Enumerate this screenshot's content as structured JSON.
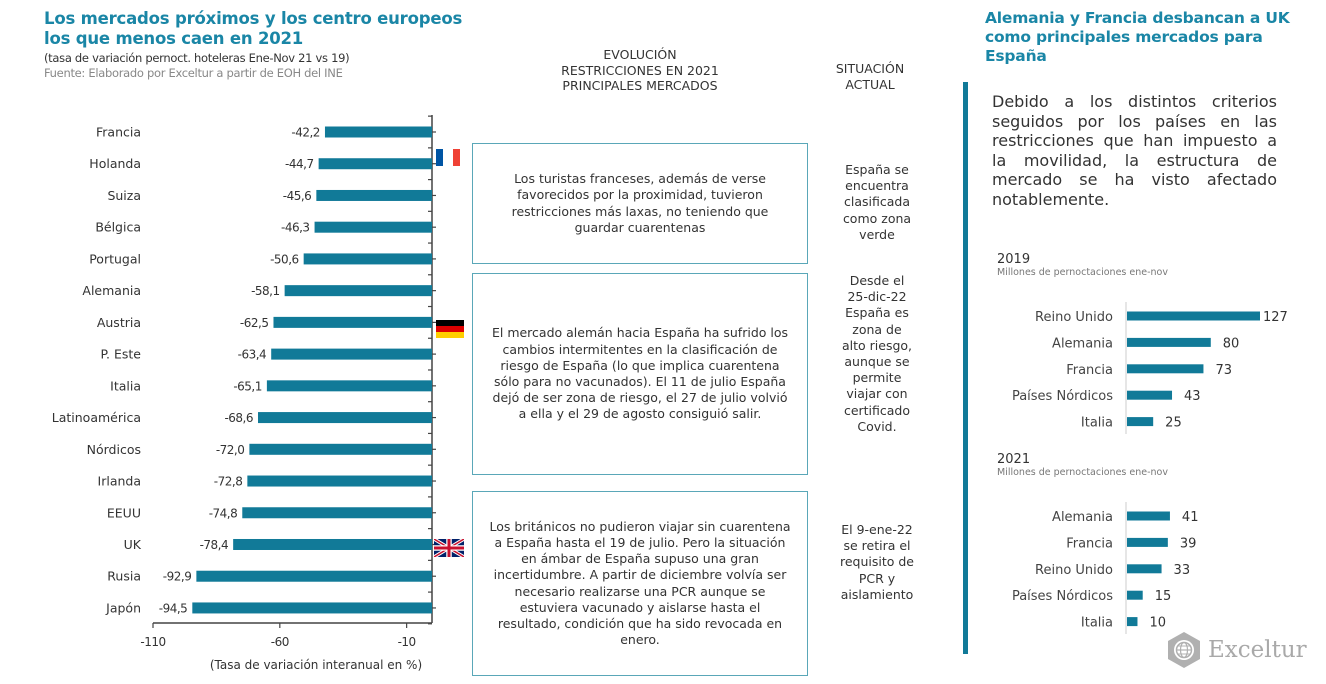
{
  "left": {
    "title": "Los mercados próximos y los centro europeos los que menos caen en 2021",
    "subtitle": "(tasa de variación pernoct. hoteleras Ene-Nov 21 vs 19)",
    "source": "Fuente:  Elaborado por Exceltur a partir de EOH del INE"
  },
  "columns": {
    "evolution_header": [
      "EVOLUCIÓN",
      "RESTRICCIONES EN 2021",
      "PRINCIPALES MERCADOS"
    ],
    "situation_header": [
      "SITUACIÓN",
      "ACTUAL"
    ]
  },
  "flags": {
    "fr_icon": "flag-france-icon",
    "de_icon": "flag-germany-icon",
    "uk_icon": "flag-uk-icon",
    "colors": {
      "fr_blue": "#0055a4",
      "fr_red": "#ef4135",
      "de_black": "#000000",
      "de_red": "#dd0000",
      "de_gold": "#ffce00",
      "uk_blue": "#012169",
      "uk_red": "#c8102e"
    }
  },
  "boxes": {
    "france": "Los turistas franceses, además de verse favorecidos por la proximidad, tuvieron restricciones más laxas, no teniendo que guardar cuarentenas",
    "germany": "El mercado alemán hacia España ha sufrido los cambios intermitentes en la clasificación de riesgo de España (lo que implica cuarentena sólo para no vacunados). El 11 de julio España dejó de ser zona de riesgo, el 27 de julio volvió a ella y el 29 de agosto consiguió salir.",
    "uk": "Los británicos no pudieron viajar sin cuarentena a España hasta el 19 de julio. Pero la situación en ámbar de España supuso una gran incertidumbre. A partir de diciembre volvía ser necesario realizarse una PCR aunque se estuviera vacunado y aislarse hasta el resultado, condición que ha sido revocada en enero."
  },
  "situation": {
    "france": [
      "España se",
      "encuentra",
      "clasificada",
      "como zona",
      "verde"
    ],
    "germany": [
      "Desde el",
      "25-dic-22",
      "España es",
      "zona de",
      "alto riesgo,",
      "aunque se",
      "permite",
      "viajar con",
      "certificado",
      "Covid."
    ],
    "uk": [
      "El 9-ene-22",
      "se retira el",
      "requisito de",
      "PCR y",
      "aislamiento"
    ]
  },
  "right": {
    "title": "Alemania y Francia desbancan a UK como principales mercados para España",
    "text": "Debido a los distintos criterios seguidos por los países en las restricciones que han impuesto a la movilidad, la estructura de mercado se ha visto afectado notablemente."
  },
  "logo": {
    "icon": "exceltur-globe-hexagon-icon",
    "text": "Exceltur"
  },
  "colors": {
    "accent": "#1a86a6",
    "bar": "#117a98",
    "box_border": "#5aa7b8"
  },
  "chart_data": [
    {
      "type": "bar",
      "orientation": "horizontal",
      "title": "Los mercados próximos y los centro europeos los que menos caen en 2021",
      "subtitle": "(tasa de variación pernoct. hoteleras Ene-Nov 21 vs 19)",
      "xlabel": "(Tasa de variación interanual en %)",
      "ylabel": "",
      "categories": [
        "Francia",
        "Holanda",
        "Suiza",
        "Bélgica",
        "Portugal",
        "Alemania",
        "Austria",
        "P. Este",
        "Italia",
        "Latinoamérica",
        "Nórdicos",
        "Irlanda",
        "EEUU",
        "UK",
        "Rusia",
        "Japón"
      ],
      "values": [
        -42.2,
        -44.7,
        -45.6,
        -46.3,
        -50.6,
        -58.1,
        -62.5,
        -63.4,
        -65.1,
        -68.6,
        -72.0,
        -72.8,
        -74.8,
        -78.4,
        -92.9,
        -94.5
      ],
      "value_labels": [
        "-42,2",
        "-44,7",
        "-45,6",
        "-46,3",
        "-50,6",
        "-58,1",
        "-62,5",
        "-63,4",
        "-65,1",
        "-68,6",
        "-72,0",
        "-72,8",
        "-74,8",
        "-78,4",
        "-92,9",
        "-94,5"
      ],
      "xlim": [
        -110,
        0
      ],
      "xticks": [
        -110,
        -60,
        -10
      ],
      "xtick_labels": [
        "-110",
        "-60",
        "-10"
      ],
      "grid": false,
      "legend": "none"
    },
    {
      "type": "bar",
      "orientation": "horizontal",
      "title": "2019",
      "subtitle": "Millones de pernoctaciones ene-nov",
      "categories": [
        "Reino Unido",
        "Alemania",
        "Francia",
        "Países Nórdicos",
        "Italia"
      ],
      "values": [
        127,
        80,
        73,
        43,
        25
      ],
      "xlim": [
        0,
        130
      ],
      "grid": false,
      "legend": "none"
    },
    {
      "type": "bar",
      "orientation": "horizontal",
      "title": "2021",
      "subtitle": "Millones de pernoctaciones ene-nov",
      "categories": [
        "Alemania",
        "Francia",
        "Reino Unido",
        "Países Nórdicos",
        "Italia"
      ],
      "values": [
        41,
        39,
        33,
        15,
        10
      ],
      "xlim": [
        0,
        130
      ],
      "grid": false,
      "legend": "none"
    }
  ]
}
